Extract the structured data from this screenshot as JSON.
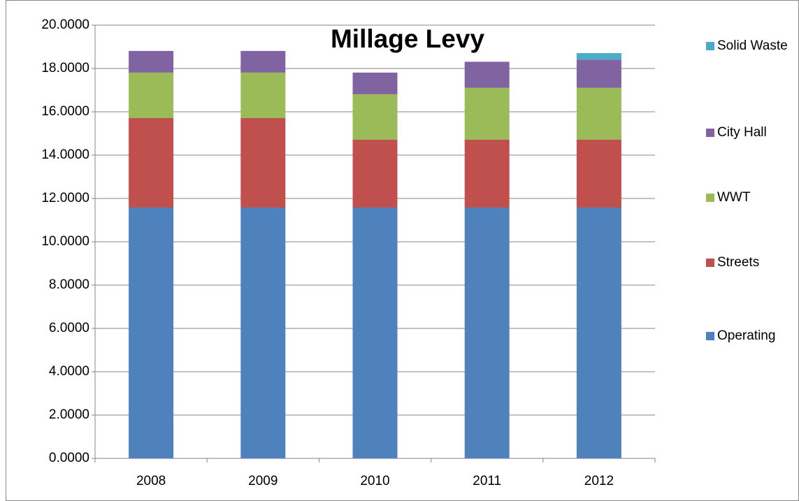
{
  "chart_data": {
    "type": "stacked_bar",
    "title": "Millage Levy",
    "categories": [
      "2008",
      "2009",
      "2010",
      "2011",
      "2012"
    ],
    "series": [
      {
        "name": "Operating",
        "color": "#4f81bd",
        "values": [
          11.58,
          11.58,
          11.58,
          11.58,
          11.58
        ]
      },
      {
        "name": "Streets",
        "color": "#c0504d",
        "values": [
          4.13,
          4.13,
          3.13,
          3.13,
          3.13
        ]
      },
      {
        "name": "WWT",
        "color": "#9bbb59",
        "values": [
          2.1,
          2.1,
          2.1,
          2.4,
          2.4
        ]
      },
      {
        "name": "City Hall",
        "color": "#8064a2",
        "values": [
          1.0,
          1.0,
          1.0,
          1.2,
          1.3
        ]
      },
      {
        "name": "Solid Waste",
        "color": "#4bacc6",
        "values": [
          0,
          0,
          0,
          0,
          0.3
        ]
      }
    ],
    "ylim": [
      0,
      20
    ],
    "yticks": [
      {
        "value": 0,
        "label": "0.0000"
      },
      {
        "value": 2,
        "label": "2.0000"
      },
      {
        "value": 4,
        "label": "4.0000"
      },
      {
        "value": 6,
        "label": "6.0000"
      },
      {
        "value": 8,
        "label": "8.0000"
      },
      {
        "value": 10,
        "label": "10.0000"
      },
      {
        "value": 12,
        "label": "12.0000"
      },
      {
        "value": 14,
        "label": "14.0000"
      },
      {
        "value": 16,
        "label": "16.0000"
      },
      {
        "value": 18,
        "label": "18.0000"
      },
      {
        "value": 20,
        "label": "20.0000"
      }
    ],
    "grid": true,
    "legend": "right"
  }
}
